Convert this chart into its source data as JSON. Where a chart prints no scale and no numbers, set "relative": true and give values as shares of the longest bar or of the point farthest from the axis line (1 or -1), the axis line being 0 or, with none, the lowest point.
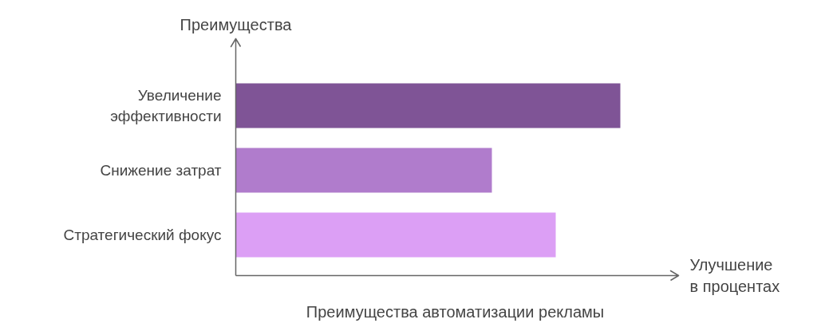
{
  "chart_data": {
    "type": "bar",
    "orientation": "horizontal",
    "relative": true,
    "title": "Преимущества автоматизации рекламы",
    "xlabel": "Улучшение в процентах",
    "ylabel": "Преимущества",
    "categories": [
      "Увеличение эффективности",
      "Снижение затрат",
      "Стратегический фокус"
    ],
    "values": [
      1,
      0.666,
      0.832
    ],
    "colors": [
      "#7f5496",
      "#b07ccc",
      "#dc9ff5"
    ],
    "grid": false,
    "legend": false
  }
}
